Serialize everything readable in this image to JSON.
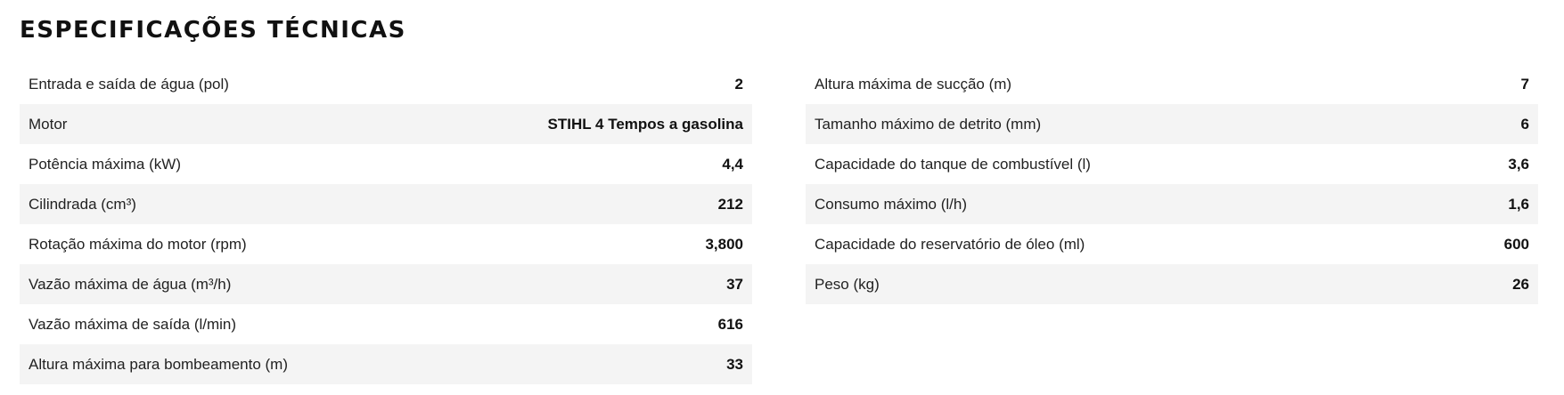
{
  "section": {
    "title": "ESPECIFICAÇÕES TÉCNICAS"
  },
  "left_specs": [
    {
      "label": "Entrada e saída de água (pol)",
      "value": "2"
    },
    {
      "label": "Motor",
      "value": "STIHL 4 Tempos a gasolina"
    },
    {
      "label": "Potência máxima (kW)",
      "value": "4,4"
    },
    {
      "label": "Cilindrada (cm³)",
      "value": "212"
    },
    {
      "label": "Rotação máxima do motor (rpm)",
      "value": "3,800"
    },
    {
      "label": "Vazão máxima de água (m³/h)",
      "value": "37"
    },
    {
      "label": "Vazão máxima de saída (l/min)",
      "value": "616"
    },
    {
      "label": "Altura máxima para bombeamento (m)",
      "value": "33"
    }
  ],
  "right_specs": [
    {
      "label": "Altura máxima de sucção (m)",
      "value": "7"
    },
    {
      "label": "Tamanho máximo de detrito (mm)",
      "value": "6"
    },
    {
      "label": "Capacidade do tanque de combustível (l)",
      "value": "3,6"
    },
    {
      "label": "Consumo máximo (l/h)",
      "value": "1,6"
    },
    {
      "label": "Capacidade do reservatório de óleo (ml)",
      "value": "600"
    },
    {
      "label": "Peso (kg)",
      "value": "26"
    }
  ]
}
